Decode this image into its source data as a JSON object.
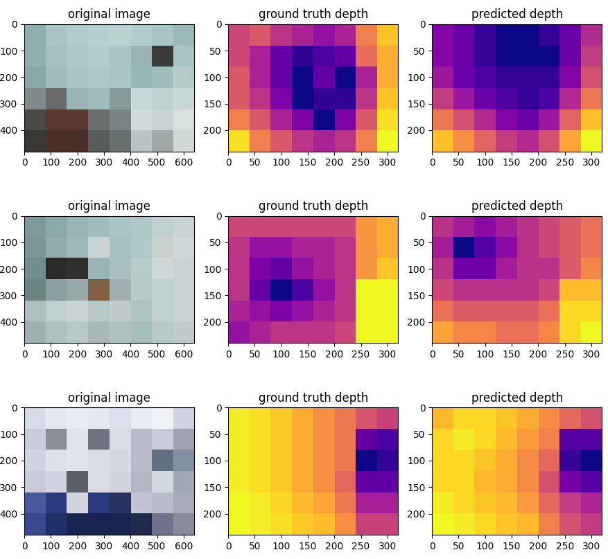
{
  "chart_data": [
    {
      "type": "image",
      "title": "original image",
      "xlim": [
        0,
        640
      ],
      "ylim": [
        480,
        0
      ],
      "xticks": [
        0,
        100,
        200,
        300,
        400,
        500,
        600
      ],
      "yticks": [
        0,
        100,
        200,
        300,
        400
      ],
      "cells": [
        [
          "#8fb0b0",
          "#a8c4c4",
          "#b0cccc",
          "#b4cfcf",
          "#b8d2d2",
          "#b0cccc",
          "#a8c4c4",
          "#9ab8b8"
        ],
        [
          "#90b0b0",
          "#a4c0c0",
          "#acc8c8",
          "#b0cccc",
          "#a8c4c4",
          "#9ab4b4",
          "#3a3a3a",
          "#a8c4c4"
        ],
        [
          "#88a8a8",
          "#a0bcbc",
          "#a8c4c4",
          "#acc8c8",
          "#a8c4c4",
          "#98b8b8",
          "#a0bcbc",
          "#b8cccc"
        ],
        [
          "#808a8a",
          "#6a6a6a",
          "#98b4b4",
          "#a0bcbc",
          "#8a9a9a",
          "#c8d8d8",
          "#c0d0d0",
          "#c8d8d8"
        ],
        [
          "#4a4a48",
          "#5a3a30",
          "#5a3a30",
          "#6a7070",
          "#7a8484",
          "#d0dcdc",
          "#c8d4d4",
          "#d8e0e0"
        ],
        [
          "#3a3834",
          "#4a3028",
          "#4a3028",
          "#585c5c",
          "#687070",
          "#b8c4c4",
          "#a0a8a8",
          "#d0d8d8"
        ]
      ]
    },
    {
      "type": "heatmap",
      "title": "ground truth depth",
      "color": "plasma",
      "xlim": [
        0,
        320
      ],
      "ylim": [
        240,
        0
      ],
      "xticks": [
        0,
        50,
        100,
        150,
        200,
        250,
        300
      ],
      "yticks": [
        0,
        50,
        100,
        150,
        200
      ],
      "cells": [
        [
          0.55,
          0.6,
          0.5,
          0.45,
          0.4,
          0.45,
          0.7,
          0.85
        ],
        [
          0.55,
          0.45,
          0.3,
          0.2,
          0.25,
          0.3,
          0.65,
          0.8
        ],
        [
          0.6,
          0.45,
          0.3,
          0.15,
          0.3,
          0.15,
          0.45,
          0.8
        ],
        [
          0.6,
          0.5,
          0.35,
          0.15,
          0.2,
          0.2,
          0.5,
          0.85
        ],
        [
          0.7,
          0.6,
          0.45,
          0.35,
          0.15,
          0.35,
          0.6,
          0.9
        ],
        [
          0.9,
          0.7,
          0.6,
          0.5,
          0.45,
          0.5,
          0.7,
          0.95
        ]
      ]
    },
    {
      "type": "heatmap",
      "title": "predicted depth",
      "color": "plasma",
      "xlim": [
        0,
        320
      ],
      "ylim": [
        240,
        0
      ],
      "xticks": [
        0,
        50,
        100,
        150,
        200,
        250,
        300
      ],
      "yticks": [
        0,
        50,
        100,
        150,
        200
      ],
      "cells": [
        [
          0.35,
          0.3,
          0.2,
          0.15,
          0.15,
          0.2,
          0.3,
          0.45
        ],
        [
          0.35,
          0.3,
          0.2,
          0.15,
          0.15,
          0.15,
          0.3,
          0.5
        ],
        [
          0.4,
          0.3,
          0.25,
          0.2,
          0.2,
          0.2,
          0.35,
          0.55
        ],
        [
          0.5,
          0.4,
          0.3,
          0.25,
          0.2,
          0.25,
          0.45,
          0.65
        ],
        [
          0.65,
          0.55,
          0.45,
          0.35,
          0.3,
          0.4,
          0.6,
          0.8
        ],
        [
          0.8,
          0.7,
          0.6,
          0.5,
          0.45,
          0.55,
          0.75,
          0.9
        ]
      ]
    },
    {
      "type": "image",
      "title": "original image",
      "xlim": [
        0,
        640
      ],
      "ylim": [
        480,
        0
      ],
      "xticks": [
        0,
        100,
        200,
        300,
        400,
        500,
        600
      ],
      "yticks": [
        0,
        100,
        200,
        300,
        400
      ],
      "cells": [
        [
          "#7e9a9a",
          "#8aa8a8",
          "#98b4b4",
          "#a0bcbc",
          "#a8c4c4",
          "#b0c8c8",
          "#c0d0d0",
          "#c8d4d4"
        ],
        [
          "#7a9696",
          "#90acac",
          "#9cb8b8",
          "#c8d4d4",
          "#a4c0c0",
          "#b0c8c8",
          "#c8d0d0",
          "#d0d8d8"
        ],
        [
          "#708c8c",
          "#2a2a2a",
          "#303030",
          "#98b4b4",
          "#a8c0c0",
          "#b8cccc",
          "#d0d8d8",
          "#c8d4d4"
        ],
        [
          "#6a8484",
          "#8aa0a0",
          "#98a8a8",
          "#806040",
          "#a0b0b0",
          "#b8c8c8",
          "#c0d0d0",
          "#c8d4d4"
        ],
        [
          "#b0c0c0",
          "#c0d0d0",
          "#c8d4d4",
          "#b8c8c8",
          "#c0cccc",
          "#b0c4c4",
          "#c0d0d0",
          "#c8d4d4"
        ],
        [
          "#a0b0b0",
          "#b0c0c0",
          "#b8c8c8",
          "#a8b8b8",
          "#b0c0c0",
          "#a8bcbc",
          "#b8c8c8",
          "#c0cccc"
        ]
      ]
    },
    {
      "type": "heatmap",
      "title": "ground truth depth",
      "color": "plasma",
      "xlim": [
        0,
        320
      ],
      "ylim": [
        240,
        0
      ],
      "xticks": [
        0,
        50,
        100,
        150,
        200,
        250,
        300
      ],
      "yticks": [
        0,
        50,
        100,
        150,
        200
      ],
      "cells": [
        [
          0.55,
          0.55,
          0.55,
          0.55,
          0.55,
          0.55,
          0.75,
          0.8
        ],
        [
          0.5,
          0.4,
          0.4,
          0.45,
          0.45,
          0.5,
          0.75,
          0.8
        ],
        [
          0.5,
          0.35,
          0.3,
          0.4,
          0.45,
          0.5,
          0.75,
          0.85
        ],
        [
          0.5,
          0.3,
          0.15,
          0.25,
          0.4,
          0.5,
          0.95,
          0.95
        ],
        [
          0.45,
          0.4,
          0.35,
          0.4,
          0.45,
          0.5,
          0.95,
          0.95
        ],
        [
          0.4,
          0.45,
          0.5,
          0.5,
          0.5,
          0.55,
          0.95,
          0.95
        ]
      ]
    },
    {
      "type": "heatmap",
      "title": "predicted depth",
      "color": "plasma",
      "xlim": [
        0,
        320
      ],
      "ylim": [
        240,
        0
      ],
      "xticks": [
        0,
        50,
        100,
        150,
        200,
        250,
        300
      ],
      "yticks": [
        0,
        50,
        100,
        150,
        200
      ],
      "cells": [
        [
          0.45,
          0.4,
          0.35,
          0.4,
          0.45,
          0.5,
          0.55,
          0.6
        ],
        [
          0.4,
          0.15,
          0.25,
          0.35,
          0.45,
          0.5,
          0.55,
          0.6
        ],
        [
          0.45,
          0.3,
          0.3,
          0.4,
          0.45,
          0.45,
          0.55,
          0.65
        ],
        [
          0.5,
          0.45,
          0.45,
          0.45,
          0.45,
          0.5,
          0.75,
          0.75
        ],
        [
          0.6,
          0.55,
          0.55,
          0.55,
          0.55,
          0.6,
          0.8,
          0.8
        ],
        [
          0.7,
          0.65,
          0.65,
          0.6,
          0.6,
          0.65,
          0.8,
          0.85
        ]
      ]
    },
    {
      "type": "image",
      "title": "original image",
      "xlim": [
        0,
        640
      ],
      "ylim": [
        480,
        0
      ],
      "xticks": [
        0,
        100,
        200,
        300,
        400,
        500,
        600
      ],
      "yticks": [
        0,
        100,
        200,
        300,
        400
      ],
      "cells": [
        [
          "#d8dce8",
          "#e4e8f0",
          "#e8ecf4",
          "#e4e8f0",
          "#dce0ec",
          "#e8ecf4",
          "#f0f2f8",
          "#d0d4e0"
        ],
        [
          "#c8ccd8",
          "#8a8e98",
          "#e0e4ec",
          "#707480",
          "#d8dce4",
          "#b8bcc8",
          "#c8ccd8",
          "#a0a4b0"
        ],
        [
          "#d0d4e0",
          "#dce0e8",
          "#e0e4ec",
          "#d8dce4",
          "#d4d8e0",
          "#b8bcc8",
          "#607080",
          "#8090a0"
        ],
        [
          "#c8ccd8",
          "#d0d4e0",
          "#5a5e68",
          "#d8dce4",
          "#d0d4dc",
          "#b4b8c4",
          "#d0d8e0",
          "#a0a8b4"
        ],
        [
          "#4a58a0",
          "#2a3a80",
          "#d0d4e0",
          "#2a3880",
          "#2a3060",
          "#c0c4d0",
          "#b8bcc8",
          "#a8acb8"
        ],
        [
          "#3a4890",
          "#22306a",
          "#1a2450",
          "#1a2450",
          "#1a2450",
          "#20284c",
          "#70748a",
          "#888c98"
        ]
      ]
    },
    {
      "type": "heatmap",
      "title": "ground truth depth",
      "color": "plasma",
      "xlim": [
        0,
        320
      ],
      "ylim": [
        240,
        0
      ],
      "xticks": [
        0,
        50,
        100,
        150,
        200,
        250,
        300
      ],
      "yticks": [
        0,
        50,
        100,
        150,
        200
      ],
      "cells": [
        [
          0.95,
          0.92,
          0.88,
          0.82,
          0.75,
          0.7,
          0.6,
          0.55
        ],
        [
          0.95,
          0.92,
          0.88,
          0.82,
          0.75,
          0.7,
          0.3,
          0.25
        ],
        [
          0.95,
          0.92,
          0.88,
          0.82,
          0.75,
          0.7,
          0.15,
          0.2
        ],
        [
          0.95,
          0.92,
          0.88,
          0.82,
          0.75,
          0.65,
          0.3,
          0.3
        ],
        [
          0.97,
          0.95,
          0.9,
          0.85,
          0.8,
          0.7,
          0.45,
          0.45
        ],
        [
          0.97,
          0.95,
          0.92,
          0.88,
          0.85,
          0.75,
          0.55,
          0.55
        ]
      ]
    },
    {
      "type": "heatmap",
      "title": "predicted depth",
      "color": "plasma",
      "xlim": [
        0,
        320
      ],
      "ylim": [
        240,
        0
      ],
      "xticks": [
        0,
        50,
        100,
        150,
        200,
        250,
        300
      ],
      "yticks": [
        0,
        50,
        100,
        150,
        200
      ],
      "cells": [
        [
          0.8,
          0.85,
          0.85,
          0.82,
          0.78,
          0.72,
          0.65,
          0.6
        ],
        [
          0.85,
          0.88,
          0.85,
          0.8,
          0.75,
          0.7,
          0.35,
          0.35
        ],
        [
          0.85,
          0.85,
          0.82,
          0.78,
          0.72,
          0.65,
          0.3,
          0.25
        ],
        [
          0.85,
          0.85,
          0.8,
          0.78,
          0.72,
          0.6,
          0.4,
          0.35
        ],
        [
          0.88,
          0.85,
          0.82,
          0.8,
          0.75,
          0.65,
          0.55,
          0.5
        ],
        [
          0.9,
          0.88,
          0.85,
          0.82,
          0.8,
          0.7,
          0.6,
          0.55
        ]
      ]
    }
  ]
}
